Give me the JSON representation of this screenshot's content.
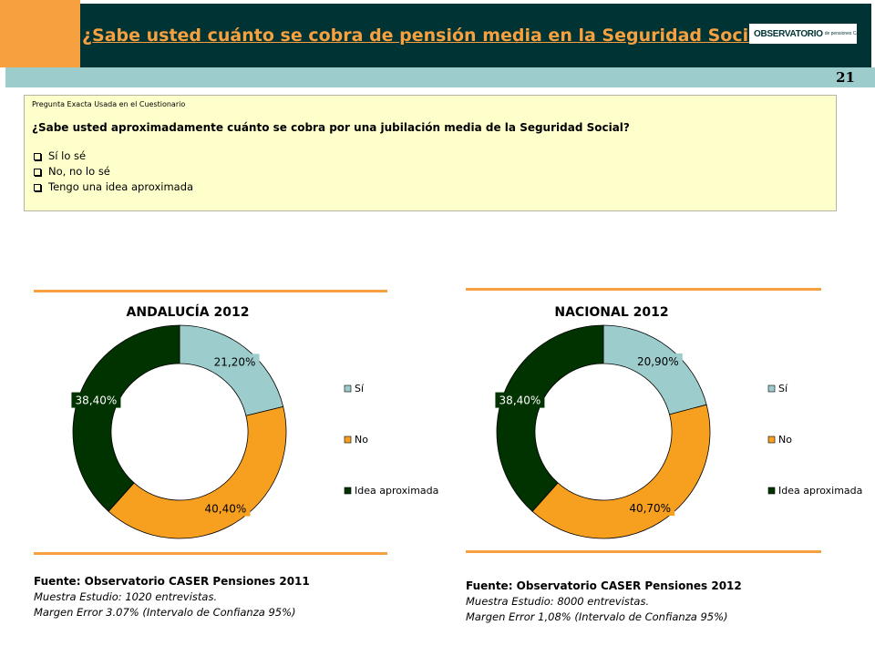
{
  "header": {
    "title": "¿Sabe usted cuánto se cobra de pensión media en la Seguridad Social?",
    "logo_text": "OBSERVATORIO",
    "logo_sub": "de pensiones Caser",
    "page_number": "21",
    "colors": {
      "dark": "#003333",
      "orange": "#f7a040",
      "teal": "#9ccccc"
    }
  },
  "question": {
    "caption": "Pregunta Exacta Usada en el Cuestionario",
    "text": "¿Sabe usted aproximadamente cuánto se cobra por una jubilación  media de la Seguridad Social?",
    "options": [
      "Sí lo sé",
      "No, no lo sé",
      "Tengo una idea aproximada"
    ]
  },
  "chart_data": [
    {
      "type": "pie",
      "title": "ANDALUCÍA 2012",
      "categories": [
        "Sí",
        "No",
        "Idea aproximada"
      ],
      "values": [
        21.2,
        40.4,
        38.4
      ],
      "labels": [
        "21,20%",
        "40,40%",
        "38,40%"
      ],
      "colors": [
        "#9ccccc",
        "#f7a020",
        "#003300"
      ],
      "legend": "right"
    },
    {
      "type": "pie",
      "title": "NACIONAL 2012",
      "categories": [
        "Sí",
        "No",
        "Idea aproximada"
      ],
      "values": [
        20.9,
        40.7,
        38.4
      ],
      "labels": [
        "20,90%",
        "40,70%",
        "38,40%"
      ],
      "colors": [
        "#9ccccc",
        "#f7a020",
        "#003300"
      ],
      "legend": "right"
    }
  ],
  "sources": [
    {
      "line1": "Fuente: Observatorio CASER Pensiones 2011",
      "line2": "Muestra Estudio: 1020 entrevistas.",
      "line3": "Margen Error 3.07% (Intervalo de Confianza 95%)"
    },
    {
      "line1": "Fuente: Observatorio CASER Pensiones 2012",
      "line2": "Muestra Estudio: 8000 entrevistas.",
      "line3": "Margen Error 1,08% (Intervalo de Confianza 95%)"
    }
  ]
}
